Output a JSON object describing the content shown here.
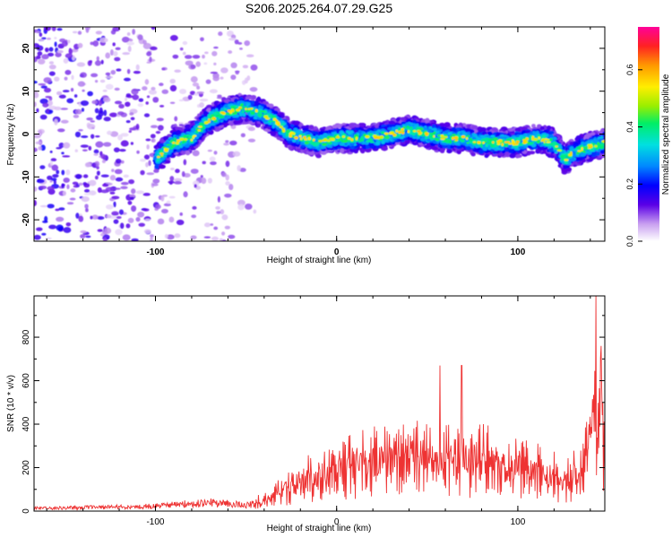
{
  "title": "S206.2025.264.07.29.G25",
  "chart_data": [
    {
      "type": "heatmap",
      "xlabel": "Height of straight line (km)",
      "ylabel": "Frequency (Hz)",
      "xlim": [
        -167,
        148
      ],
      "ylim": [
        -25,
        25
      ],
      "x_ticks": [
        -100,
        0,
        100
      ],
      "y_ticks": [
        -20,
        -10,
        0,
        10,
        20
      ],
      "colorbar": {
        "label": "Normalized spectral amplitude",
        "range": [
          0.0,
          0.75
        ],
        "ticks": [
          0.0,
          0.2,
          0.4,
          0.6
        ],
        "tick_labels": [
          "0.0",
          "0.2",
          "0.4",
          "0.6"
        ]
      },
      "ridge": {
        "x": [
          -100,
          -90,
          -80,
          -72,
          -62,
          -52,
          -42,
          -34,
          -26,
          -18,
          -10,
          0,
          10,
          20,
          30,
          40,
          50,
          60,
          70,
          80,
          90,
          100,
          110,
          120,
          126,
          132,
          140,
          148
        ],
        "frequency": [
          -6,
          -2,
          -1,
          3,
          5,
          6,
          5,
          3,
          0,
          -1,
          -2,
          -1,
          -1,
          -1,
          0,
          1,
          0,
          -1,
          -1,
          -2,
          -2,
          -2,
          -1,
          -2,
          -6,
          -4,
          -3,
          -2
        ]
      },
      "noise_region_x": [
        -167,
        -45
      ]
    },
    {
      "type": "line",
      "xlabel": "Height of straight line (km)",
      "ylabel": "SNR (10 * v/v)",
      "xlim": [
        -167,
        148
      ],
      "ylim": [
        0,
        990
      ],
      "x_ticks": [
        -100,
        0,
        100
      ],
      "y_ticks": [
        0,
        200,
        400,
        600,
        800
      ],
      "series": [
        {
          "name": "SNR",
          "color": "#ee3333",
          "envelope_x": [
            -167,
            -140,
            -110,
            -90,
            -70,
            -50,
            -40,
            -30,
            -20,
            -10,
            0,
            10,
            20,
            30,
            40,
            50,
            60,
            70,
            80,
            90,
            100,
            110,
            120,
            125,
            130,
            135,
            140,
            143,
            146,
            148
          ],
          "envelope_y": [
            20,
            25,
            30,
            45,
            60,
            45,
            60,
            120,
            170,
            220,
            240,
            270,
            290,
            300,
            310,
            320,
            300,
            290,
            300,
            280,
            260,
            250,
            210,
            160,
            200,
            260,
            420,
            600,
            550,
            320
          ],
          "peaks": [
            {
              "x": 57,
              "y": 670
            },
            {
              "x": 69,
              "y": 670
            },
            {
              "x": 143,
              "y": 990
            },
            {
              "x": 146,
              "y": 760
            }
          ]
        }
      ]
    }
  ]
}
